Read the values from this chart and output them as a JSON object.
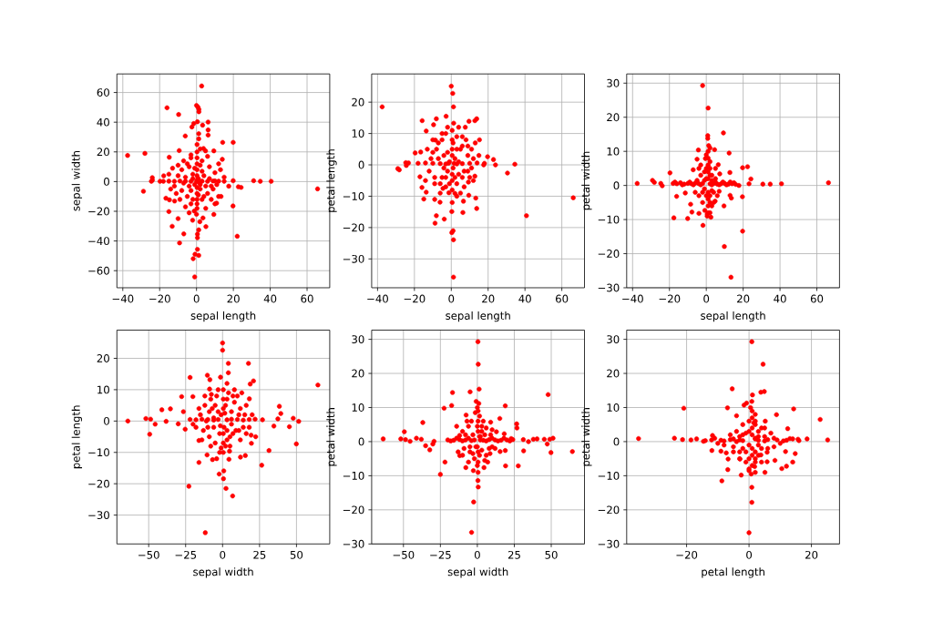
{
  "chart_data": [
    {
      "type": "scatter",
      "xlabel": "sepal length",
      "ylabel": "sepal width",
      "color": "#ff0000",
      "marker": "circle",
      "grid": true,
      "xlim": [
        -43.2,
        72.3
      ],
      "ylim": [
        -71.5,
        72.5
      ],
      "xticks": [
        {
          "value": -40,
          "label": "−40"
        },
        {
          "value": -20,
          "label": "−20"
        },
        0,
        20,
        40,
        60
      ],
      "yticks": [
        {
          "value": -60,
          "label": "−60"
        },
        {
          "value": -40,
          "label": "−40"
        },
        {
          "value": -20,
          "label": "−20"
        },
        0,
        20,
        40,
        60
      ],
      "x": [
        2.8,
        -16.0,
        -9.7,
        0,
        0.8,
        1.3,
        1.3,
        6.3,
        0.5,
        -1.5,
        -2.5,
        3.3,
        6.3,
        6.3,
        1.2,
        -6.1,
        1.2,
        14.2,
        19.9,
        3.8,
        4.9,
        9.4,
        -9.4,
        -37.4,
        -28.0,
        -14.8,
        -28.8,
        -24.0,
        -23.9,
        -24.5,
        -17.8,
        -19.8,
        19.9,
        31.0,
        34.6,
        40.5,
        65.7,
        22.7,
        24.2,
        17.5,
        19.8,
        13.3,
        10.9,
        9.4,
        22.1,
        5.1,
        3.5,
        1.8,
        1.2,
        0.5,
        0.5,
        0.5,
        1.2,
        -0.8,
        -1.8,
        -1.0,
        -9.2,
        -6.9,
        -13.2,
        -10.0,
        -15.0,
        -14.7,
        -16.6,
        -11.9,
        -1.2,
        -2.1,
        -18,
        -15,
        -12,
        -9,
        -6,
        -3,
        3,
        6,
        9,
        12,
        15,
        0.3,
        0.3,
        0.3,
        0.3,
        0.3,
        0.3,
        0.3,
        0.3,
        0.3,
        0.3,
        0.3,
        -8,
        -5,
        -3,
        3,
        7,
        10,
        12,
        14,
        13,
        -10,
        -12,
        -8,
        -5,
        -3,
        3,
        6,
        9,
        11,
        -6,
        5,
        8,
        -2,
        2,
        4,
        -4,
        0,
        1,
        -1,
        15,
        -15,
        -13,
        -10,
        10,
        12,
        -11,
        -7,
        6,
        2,
        -3,
        -4,
        0,
        -2,
        2,
        -3,
        3,
        -6,
        5,
        -1,
        1,
        -4,
        4,
        7,
        -7,
        2,
        -2,
        8,
        -9,
        10,
        -14,
        0.5,
        1.5
      ],
      "values": [
        64.4,
        49.7,
        45.2,
        51.3,
        50.1,
        48.7,
        47.0,
        40.1,
        40.3,
        39.1,
        36.8,
        38.0,
        34.8,
        31.3,
        32.3,
        30.7,
        28.8,
        26.4,
        26.4,
        22.3,
        20.7,
        20.7,
        20.9,
        17.6,
        19.0,
        16.4,
        -6.5,
        2.7,
        1.0,
        0.2,
        3.9,
        0.2,
        0.6,
        0.6,
        0.2,
        0.2,
        -4.9,
        -3.5,
        -3.9,
        -3.1,
        -16.4,
        -10.0,
        -14.5,
        -22.1,
        -36.8,
        -30.3,
        -24.5,
        -27.0,
        -32.5,
        -35.4,
        -37.8,
        -45.6,
        -49.7,
        -48.9,
        -51.9,
        -64.2,
        -41.3,
        -35.2,
        -30.1,
        -24.9,
        -20.2,
        -12.3,
        -11.2,
        -13.1,
        -19.8,
        -26.0,
        0.2,
        0.3,
        0.2,
        0.4,
        0.3,
        0.2,
        0.3,
        0.2,
        0.4,
        0.3,
        0.2,
        -18,
        -15,
        -12,
        -8,
        -4,
        4,
        8,
        12,
        16,
        20,
        25,
        8,
        12,
        16,
        14,
        10,
        6,
        12,
        15,
        8,
        4,
        -3,
        -6,
        -10,
        -15,
        -12,
        -8,
        -5,
        -2,
        -17,
        -18,
        -12,
        5,
        -5,
        4,
        -3,
        0,
        2,
        -2,
        3,
        5,
        9,
        11,
        -15,
        -10,
        -8,
        14,
        17,
        22,
        18,
        -21,
        -22,
        2,
        -2,
        -6,
        7,
        3,
        -3,
        9,
        -9,
        10,
        -10,
        2,
        -1,
        11,
        -12,
        -3,
        -12,
        0.5,
        -5,
        1.5,
        -0.5
      ]
    },
    {
      "type": "scatter",
      "xlabel": "sepal length",
      "ylabel": "petal length",
      "color": "#ff0000",
      "marker": "circle",
      "grid": true,
      "xlim": [
        -43.2,
        72.3
      ],
      "ylim": [
        -39.2,
        29.0
      ],
      "xticks": [
        {
          "value": -40,
          "label": "−40"
        },
        {
          "value": -20,
          "label": "−20"
        },
        0,
        20,
        40,
        60
      ],
      "yticks": [
        {
          "value": -30,
          "label": "−30"
        },
        {
          "value": -20,
          "label": "−20"
        },
        {
          "value": -10,
          "label": "−10"
        },
        0,
        10,
        20
      ],
      "x": [
        0,
        0.8,
        1.2,
        -37.5,
        -2.8,
        -15.8,
        -8.1,
        13.8,
        12.8,
        9.6,
        1.3,
        -9.6,
        -13.6,
        7.6,
        15.3,
        -8.6,
        -19.6,
        -16.6,
        -29.0,
        -28.2,
        -24.4,
        -24.7,
        -23.2,
        17.6,
        19.7,
        22.9,
        24.0,
        30.5,
        34.5,
        66.2,
        40.8,
        13.8,
        6.6,
        9.5,
        13.3,
        -4.5,
        -6.1,
        -8.1,
        -8.8,
        -3.8,
        -9.0,
        -14.9,
        -13.6,
        -15.9,
        -17.0,
        0.3,
        1.0,
        0.3,
        1.2,
        1.2,
        6.3,
        -1.3,
        2.0,
        9.3,
        12.8,
        -18,
        -14,
        -10,
        -6,
        -3,
        3,
        6,
        10,
        14,
        18,
        0.5,
        0.5,
        0.5,
        0.5,
        0.5,
        0.5,
        0.5,
        0.5,
        -8,
        -5,
        -3,
        3,
        6,
        9,
        11,
        12,
        -11,
        -12,
        -9,
        -6,
        -3,
        3,
        6,
        9,
        11,
        -4,
        4,
        2,
        -2,
        5,
        -5,
        7,
        -7,
        8,
        -10,
        12,
        -13,
        13,
        4,
        -2,
        -1,
        1,
        -2,
        2,
        -4,
        4,
        -7,
        7,
        -3,
        3,
        1,
        -1,
        6,
        -6,
        9,
        -9,
        10,
        -10,
        1.5,
        -1.5,
        5,
        -5,
        3,
        -14,
        15
      ],
      "values": [
        25.1,
        22.8,
        18.5,
        18.5,
        15.5,
        14.1,
        14.7,
        14.7,
        14.1,
        13.9,
        13.3,
        12.8,
        10.8,
        12.0,
        8.0,
        7.9,
        3.8,
        4.1,
        -1.2,
        -1.6,
        -0.2,
        0.7,
        0.6,
        0.0,
        2.6,
        1.7,
        0.0,
        -2.6,
        0.2,
        -10.5,
        -16.2,
        -13.9,
        -11.6,
        -9.7,
        -10.6,
        -7.5,
        -11.9,
        -16.2,
        -18.6,
        -17.3,
        -11.0,
        -10.9,
        -8.7,
        -7.2,
        -3.8,
        -14.9,
        -21.0,
        -21.6,
        -23.9,
        -35.8,
        -15.2,
        -8.9,
        -9.1,
        -5.5,
        -3.6,
        0.5,
        0.6,
        0.5,
        0.4,
        0.3,
        0.3,
        0.4,
        0.5,
        0.6,
        0.5,
        -12,
        -8,
        -5,
        -3,
        3,
        5,
        8,
        11,
        5,
        8,
        10,
        9,
        6,
        3,
        5,
        2,
        2,
        -2,
        -4,
        -6,
        -7,
        -6,
        -4,
        -2,
        -1,
        3,
        -3,
        2,
        -2,
        5,
        -4,
        -7,
        7,
        8,
        8,
        -5,
        5,
        7,
        12,
        12,
        1,
        -1,
        4,
        -4,
        -1,
        1,
        2,
        -2,
        -4,
        5,
        7,
        -6,
        9,
        -9,
        6,
        -6,
        -4,
        4,
        0.5,
        0.5,
        -9,
        10,
        -10,
        -5,
        3
      ]
    },
    {
      "type": "scatter",
      "xlabel": "sepal length",
      "ylabel": "petal width",
      "color": "#ff0000",
      "marker": "circle",
      "grid": true,
      "xlim": [
        -43.2,
        72.3
      ],
      "ylim": [
        -30,
        32.7
      ],
      "xticks": [
        {
          "value": -40,
          "label": "−40"
        },
        {
          "value": -20,
          "label": "−20"
        },
        0,
        20,
        40,
        60
      ],
      "yticks": [
        {
          "value": -30,
          "label": "−30"
        },
        {
          "value": -20,
          "label": "−20"
        },
        {
          "value": -10,
          "label": "−10"
        },
        0,
        10,
        20,
        30
      ],
      "x": [
        -2.0,
        1.0,
        9.3,
        0.8,
        0.8,
        -4.3,
        4.5,
        12.4,
        1.3,
        19.7,
        22.4,
        24.2,
        23.2,
        -19.7,
        -29.2,
        -28.2,
        -37.5,
        -24.7,
        -23.9,
        17.7,
        30.7,
        34.7,
        40.8,
        66.3,
        -17.6,
        -10.1,
        -16.1,
        -11.4,
        -8.5,
        -7.8,
        -4.0,
        -1.8,
        2.5,
        9.6,
        12.9,
        13.6,
        19.6,
        19.7,
        9.8,
        13.4,
        6.5,
        7.3,
        12.8,
        -5.0,
        -7.1,
        -0.5,
        7.0,
        4.8,
        0.5,
        -0.8,
        -18,
        -16,
        -14,
        -12,
        -10,
        -8,
        -6,
        -4,
        -2,
        2,
        4,
        6,
        8,
        10,
        12,
        14,
        16,
        1,
        1,
        1,
        1,
        1,
        1,
        1,
        1,
        1,
        -3,
        3,
        -4,
        4,
        2,
        -2,
        3,
        -3,
        5,
        -5,
        6,
        2,
        -1,
        -6,
        5,
        2,
        2,
        0,
        2,
        0,
        2,
        0,
        2,
        0.5,
        3,
        -1,
        -1,
        0,
        3,
        -17,
        -13,
        -9,
        -7,
        -5,
        -3,
        3,
        5,
        7,
        9,
        11,
        13,
        15,
        -2,
        4,
        -4
      ],
      "values": [
        29.3,
        22.7,
        15.4,
        14.6,
        13.8,
        10.4,
        10.5,
        9.5,
        11.7,
        5.2,
        5.5,
        1.9,
        0.5,
        3.7,
        1.5,
        0.9,
        0.6,
        0.6,
        -0.1,
        0.0,
        0.4,
        0.4,
        0.5,
        0.8,
        -9.5,
        -9.7,
        -3.2,
        -2.2,
        -5.5,
        -7.8,
        -8.2,
        -11.7,
        -9.3,
        -6.0,
        -2.9,
        -3.7,
        -3.3,
        -13.4,
        -17.9,
        -26.9,
        6.1,
        3.4,
        3.8,
        7.7,
        4.6,
        7.9,
        -1.7,
        -4.6,
        -8.4,
        -7.3,
        0.6,
        0.5,
        0.8,
        0.4,
        0.6,
        0.5,
        0.7,
        0.5,
        0.6,
        0.5,
        0.6,
        0.4,
        0.5,
        0.6,
        0.4,
        0.5,
        0.3,
        -8,
        -6,
        -4,
        -2,
        2,
        4,
        6,
        8,
        10,
        3,
        3,
        -3,
        -2,
        5,
        -5,
        -6,
        6,
        2,
        1.5,
        -3,
        -3,
        4,
        -2,
        5,
        -8,
        -5,
        -3,
        3,
        5,
        7,
        9,
        11,
        -9,
        -1.5,
        -1,
        1.5,
        2,
        1.5,
        1,
        0.2,
        1,
        0.2,
        1,
        0.2,
        0.2,
        1,
        0.2,
        1,
        0.2,
        1,
        0.8,
        -2,
        -5,
        5
      ]
    },
    {
      "type": "scatter",
      "xlabel": "sepal width",
      "ylabel": "petal length",
      "color": "#ff0000",
      "marker": "circle",
      "grid": true,
      "xlim": [
        -71.5,
        72.5
      ],
      "ylim": [
        -39.2,
        29.0
      ],
      "xticks": [
        {
          "value": -50,
          "label": "−50"
        },
        {
          "value": -25,
          "label": "−25"
        },
        0,
        25,
        50
      ],
      "yticks": [
        {
          "value": -30,
          "label": "−30"
        },
        {
          "value": -20,
          "label": "−20"
        },
        {
          "value": -10,
          "label": "−10"
        },
        0,
        10,
        20
      ],
      "x": [
        0,
        0,
        3.9,
        17.5,
        20.9,
        18.7,
        64.5,
        3.9,
        -1.4,
        -10.3,
        -8.6,
        -22.0,
        -7.6,
        -8.8,
        -27.7,
        -20.1,
        18.1,
        38.4,
        39.4,
        -41.1,
        -35.3,
        -51.9,
        -48.7,
        -64.1,
        -45.6,
        -49.3,
        -38.2,
        -30.0,
        -25.3,
        -26.5,
        37.4,
        47.8,
        51.5,
        34.7,
        45.2,
        49.9,
        31.4,
        26.5,
        19.3,
        22.4,
        19.5,
        -16.0,
        -16.0,
        -22.8,
        -11.7,
        -2.3,
        0.6,
        0.8,
        2.3,
        6.8,
        -10.5,
        -6.8,
        12.1,
        15.4,
        4.3,
        4.7,
        -1.0,
        -22,
        -18,
        -14,
        -10,
        -6,
        -3,
        3,
        6,
        10,
        14,
        18,
        22,
        27,
        0.5,
        0.5,
        0.5,
        0.5,
        0.5,
        0.5,
        -12,
        -8,
        -4,
        4,
        8,
        12,
        15,
        -15,
        -13,
        -9,
        -5,
        3,
        7,
        11,
        14,
        -3,
        3,
        6,
        -6,
        10,
        -10,
        2,
        -2,
        5,
        -7,
        16,
        -18,
        -1,
        1,
        -5,
        5,
        -9,
        9,
        -11,
        11,
        -3,
        3,
        -2,
        2,
        8,
        -8,
        12,
        -12,
        16,
        -16,
        20,
        -20,
        6,
        -6,
        1.5,
        -1.5,
        7,
        -4,
        3,
        13,
        -14,
        18
      ],
      "values": [
        24.9,
        22.6,
        18.4,
        18.4,
        12.8,
        11.8,
        11.5,
        15.4,
        14.0,
        14.6,
        13.2,
        13.9,
        8.5,
        10.2,
        7.8,
        7.8,
        7.1,
        4.7,
        2.4,
        3.6,
        3.9,
        0.8,
        0.6,
        0.0,
        -1.0,
        -4.2,
        -0.1,
        -0.9,
        -2.6,
        3.0,
        0.7,
        0.9,
        -0.1,
        -1.6,
        -1.8,
        -7.3,
        -9.4,
        -14.1,
        -4.5,
        -5.0,
        -7.1,
        -6.2,
        -13.2,
        -20.8,
        -35.6,
        -16.9,
        -18.4,
        -15.9,
        -21.5,
        -23.9,
        -10.8,
        -12.3,
        -11.5,
        -11.0,
        -12.2,
        -9.6,
        -8.6,
        0.5,
        0.4,
        0.6,
        0.5,
        0.3,
        0.5,
        0.4,
        0.6,
        0.5,
        0.3,
        0.5,
        0.6,
        0.4,
        -10,
        -7,
        -4,
        4,
        7,
        10,
        5,
        7,
        8,
        9,
        6,
        4,
        2,
        2,
        -3,
        -5,
        -7,
        -6,
        -4,
        -3,
        -2,
        3,
        -3,
        3,
        -2,
        8,
        -2,
        5,
        -4,
        -8,
        4,
        5,
        -2,
        2,
        -2,
        5,
        -5,
        3,
        -3,
        0,
        2,
        10,
        7,
        -10,
        -8,
        10,
        -8,
        -6,
        8,
        -4,
        4,
        2,
        -1,
        -1,
        1,
        2.5,
        -1.5,
        8,
        -12,
        12,
        9,
        -6,
        -2
      ]
    },
    {
      "type": "scatter",
      "xlabel": "sepal width",
      "ylabel": "petal width",
      "color": "#ff0000",
      "marker": "circle",
      "grid": true,
      "xlim": [
        -71.5,
        72.5
      ],
      "ylim": [
        -30,
        32.7
      ],
      "xticks": [
        {
          "value": -50,
          "label": "−50"
        },
        {
          "value": -25,
          "label": "−25"
        },
        0,
        25,
        50
      ],
      "yticks": [
        {
          "value": -30,
          "label": "−30"
        },
        {
          "value": -20,
          "label": "−20"
        },
        {
          "value": -10,
          "label": "−10"
        },
        0,
        10,
        20,
        30
      ],
      "x": [
        0.4,
        0.6,
        1.2,
        -4.9,
        -16.8,
        47.9,
        -17.4,
        -22.5,
        18.9,
        -0.8,
        1.0,
        -36.9,
        15.2,
        26.6,
        26.8,
        -49.4,
        -63.7,
        -51.8,
        -48.6,
        -45.5,
        -41.2,
        -37.9,
        -35.0,
        -32.2,
        -30.1,
        -29.3,
        -25.0,
        -21.9,
        51.2,
        49.0,
        47.3,
        49.8,
        64.3,
        45.3,
        40.4,
        37.9,
        34.6,
        31.1,
        31.3,
        27.7,
        19.1,
        18.9,
        15.4,
        -2.7,
        0.4,
        0.6,
        -2.5,
        -3.9,
        -7.8,
        -11.9,
        4.5,
        8.6,
        -7.6,
        -1.4,
        9.0,
        12.9,
        18.2,
        22.9,
        -20,
        -16,
        -12,
        -8,
        -4,
        4,
        8,
        12,
        16,
        20,
        24,
        0.5,
        0.5,
        0.5,
        0.5,
        0.5,
        0.5,
        -10,
        -6,
        -3,
        3,
        6,
        9,
        -9,
        -5,
        -2,
        3,
        6,
        10,
        -14,
        -13,
        2,
        -1,
        4,
        -4,
        -6,
        5,
        -18,
        -14,
        -10,
        -6,
        -2,
        2,
        6,
        10,
        14,
        18,
        22,
        0,
        1.5,
        0,
        1.5,
        0,
        1.5,
        0,
        -8,
        8,
        -5,
        5,
        -3,
        3,
        -12,
        12,
        -7,
        7,
        -10,
        10
      ],
      "values": [
        29.3,
        22.7,
        15.4,
        14.6,
        14.4,
        13.8,
        10.6,
        9.8,
        10.5,
        11.8,
        11.2,
        5.6,
        6.8,
        5.2,
        4.0,
        2.9,
        0.8,
        0.8,
        0.6,
        0.1,
        1.0,
        0.7,
        -1.2,
        -2.4,
        -0.7,
        0.1,
        -9.6,
        -6.0,
        1.0,
        0.7,
        -0.7,
        -3.2,
        -2.9,
        0.7,
        0.8,
        0.7,
        0.0,
        0.6,
        -2.7,
        -7.1,
        -7.1,
        -2.6,
        -2.9,
        -8.5,
        -11.4,
        -13.3,
        -17.7,
        -26.6,
        -7.6,
        -4.1,
        -7.6,
        -3.5,
        7.8,
        8.5,
        5.7,
        2.9,
        2.3,
        0.9,
        0.5,
        0.4,
        0.6,
        0.5,
        0.3,
        0.4,
        0.6,
        0.5,
        0.4,
        0.5,
        0.6,
        -9,
        -6,
        -3,
        3,
        6,
        9,
        3,
        4.5,
        2,
        3,
        4,
        2,
        -2,
        -3,
        -5,
        -2.5,
        -4,
        -1.5,
        4.5,
        -3,
        1.5,
        -1.5,
        6,
        6,
        -6,
        -5.5,
        0.2,
        1,
        0.2,
        1,
        0.5,
        0.5,
        0.2,
        1,
        0.2,
        1,
        0.2,
        -7,
        -4,
        -1.5,
        1.5,
        4.5,
        7.5,
        10,
        2,
        -2,
        -1.5,
        2,
        -3.5,
        4.5,
        1.8,
        -2,
        6,
        -6,
        -4,
        3.5
      ]
    },
    {
      "type": "scatter",
      "xlabel": "petal length",
      "ylabel": "petal width",
      "color": "#ff0000",
      "marker": "circle",
      "grid": true,
      "xlim": [
        -39.2,
        29.0
      ],
      "ylim": [
        -30,
        32.7
      ],
      "xticks": [
        {
          "value": -20,
          "label": "−20"
        },
        0,
        20
      ],
      "yticks": [
        {
          "value": -30,
          "label": "−30"
        },
        {
          "value": -20,
          "label": "−20"
        },
        {
          "value": -10,
          "label": "−10"
        },
        0,
        10,
        20,
        30
      ],
      "x": [
        0.9,
        4.5,
        -5.4,
        3.8,
        4.9,
        1.1,
        -20.9,
        -6.9,
        -0.8,
        0.9,
        -1.6,
        -4.0,
        8.8,
        14.3,
        22.8,
        25.2,
        18.6,
        12.4,
        5.2,
        -35.4,
        -23.9,
        -21.3,
        -18.6,
        -16.8,
        -14.6,
        -11.7,
        -11.9,
        -8.7,
        -6.8,
        -6.7,
        -7.3,
        -9.0,
        -2.5,
        -2.9,
        0.0,
        0.9,
        0.9,
        0.7,
        1.8,
        5.1,
        5.8,
        8.3,
        10.5,
        12.0,
        14.0,
        14.8,
        11.7,
        5.8,
        3.8,
        15.7,
        13.1,
        -12,
        -9,
        -6,
        -3,
        3,
        6,
        9,
        12,
        1,
        1,
        1,
        1,
        1,
        1,
        1,
        -4,
        -2,
        2,
        3,
        4,
        -3,
        -1,
        2,
        -5,
        5,
        -3,
        3,
        8,
        -8,
        7,
        1.5,
        -1,
        -14,
        -11,
        -8,
        -5,
        -2,
        2,
        5,
        8,
        11,
        14,
        16,
        -10,
        10,
        0,
        2,
        0,
        2,
        0,
        2,
        0,
        2,
        0,
        2,
        0.5,
        2,
        0,
        -2,
        3,
        -3,
        4,
        -4,
        -1,
        3,
        -2,
        4,
        6,
        -6,
        5,
        -5
      ],
      "values": [
        29.3,
        22.7,
        15.5,
        14.5,
        14.7,
        13.7,
        9.8,
        9.9,
        11.3,
        11.8,
        10.7,
        7.6,
        7.9,
        9.6,
        6.5,
        0.5,
        0.8,
        3.8,
        6.0,
        0.9,
        1.0,
        0.6,
        0.5,
        0.8,
        0.1,
        1.8,
        -2.6,
        -11.5,
        -8.2,
        -5.1,
        -3.3,
        -2.8,
        -9.8,
        -5.1,
        -26.7,
        -17.8,
        -13.4,
        -9.5,
        -7.3,
        -9.0,
        -5.9,
        -5.5,
        -7.9,
        -7.2,
        -6.0,
        -3.5,
        -2.9,
        -3.1,
        -3.9,
        0.7,
        0.9,
        0.5,
        0.4,
        0.6,
        0.5,
        0.4,
        0.6,
        0.5,
        0.4,
        -7,
        -4,
        -2,
        2,
        4,
        7,
        9,
        3,
        5,
        6,
        3,
        -2,
        -3,
        -6,
        -5,
        -1.5,
        1.5,
        1.5,
        -1,
        -1.5,
        -1,
        2.5,
        5.5,
        2.5,
        0.3,
        1,
        0.2,
        0.8,
        0.3,
        0.8,
        0.2,
        1,
        0.2,
        0.8,
        0.3,
        -0.5,
        -0.5,
        -8,
        -6,
        -5,
        -3,
        -1,
        1,
        3,
        5,
        6,
        8,
        10,
        -9,
        -8.5,
        -2,
        -4,
        -5,
        4,
        0,
        -3,
        1.5,
        2,
        -6,
        -2,
        2,
        4,
        -3
      ]
    }
  ]
}
